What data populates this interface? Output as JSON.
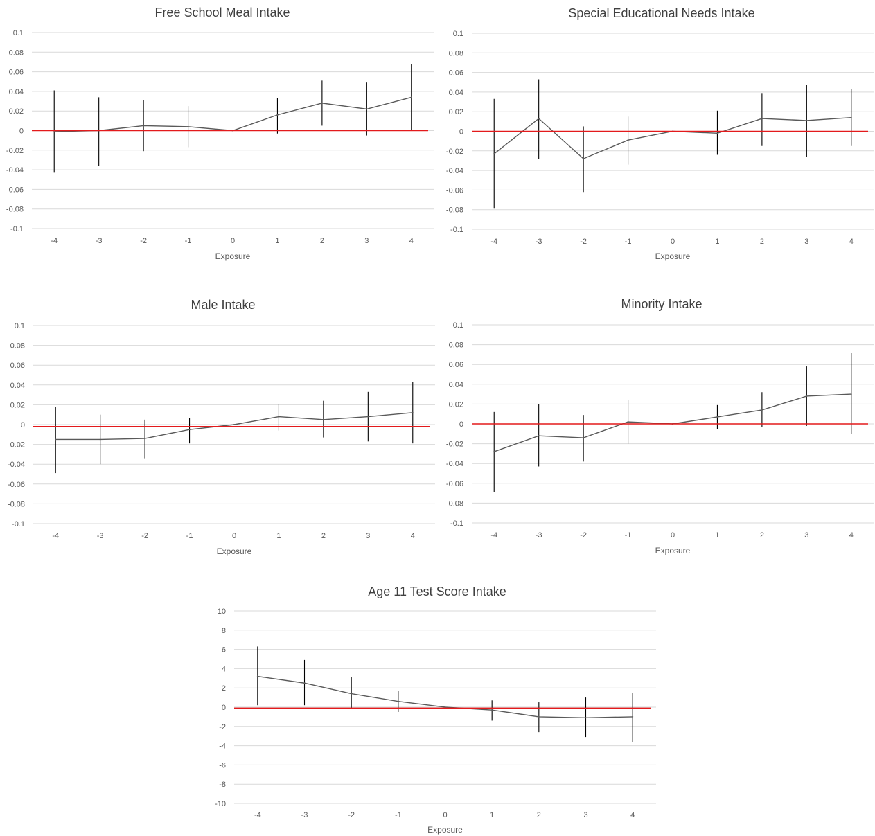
{
  "colors": {
    "series": "#595959",
    "error_bar": "#000000",
    "zero_line": "#e31a1c",
    "grid": "#d9d9d9"
  },
  "chart_data": [
    {
      "type": "line",
      "title": "Free School Meal Intake",
      "xlabel": "Exposure",
      "ylabel": "",
      "categories": [
        "-4",
        "-3",
        "-2",
        "-1",
        "0",
        "1",
        "2",
        "3",
        "4"
      ],
      "yticks": [
        "0.1",
        "0.08",
        "0.06",
        "0.04",
        "0.02",
        "0",
        "-0.02",
        "-0.04",
        "-0.06",
        "-0.08",
        "-0.1"
      ],
      "ylim": [
        -0.1,
        0.1
      ],
      "grid": true,
      "reference_line": 0,
      "values": [
        -0.001,
        0.0,
        0.005,
        0.004,
        0.0,
        0.016,
        0.028,
        0.022,
        0.034
      ],
      "ci_lower": [
        -0.043,
        -0.036,
        -0.021,
        -0.017,
        0.0,
        -0.003,
        0.005,
        -0.005,
        0.0
      ],
      "ci_upper": [
        0.041,
        0.034,
        0.031,
        0.025,
        0.0,
        0.033,
        0.051,
        0.049,
        0.068
      ]
    },
    {
      "type": "line",
      "title": "Special Educational Needs Intake",
      "xlabel": "Exposure",
      "ylabel": "",
      "categories": [
        "-4",
        "-3",
        "-2",
        "-1",
        "0",
        "1",
        "2",
        "3",
        "4"
      ],
      "yticks": [
        "0.1",
        "0.08",
        "0.06",
        "0.04",
        "0.02",
        "0",
        "-0.02",
        "-0.04",
        "-0.06",
        "-0.08",
        "-0.1"
      ],
      "ylim": [
        -0.1,
        0.1
      ],
      "grid": true,
      "reference_line": 0,
      "values": [
        -0.023,
        0.013,
        -0.028,
        -0.009,
        0.0,
        -0.002,
        0.013,
        0.011,
        0.014
      ],
      "ci_lower": [
        -0.079,
        -0.028,
        -0.062,
        -0.034,
        0.0,
        -0.024,
        -0.015,
        -0.026,
        -0.015
      ],
      "ci_upper": [
        0.033,
        0.053,
        0.005,
        0.015,
        0.0,
        0.021,
        0.039,
        0.047,
        0.043
      ]
    },
    {
      "type": "line",
      "title": "Male Intake",
      "xlabel": "Exposure",
      "ylabel": "",
      "categories": [
        "-4",
        "-3",
        "-2",
        "-1",
        "0",
        "1",
        "2",
        "3",
        "4"
      ],
      "yticks": [
        "0.1",
        "0.08",
        "0.06",
        "0.04",
        "0.02",
        "0",
        "-0.02",
        "-0.04",
        "-0.06",
        "-0.08",
        "-0.1"
      ],
      "ylim": [
        -0.1,
        0.1
      ],
      "grid": true,
      "reference_line": -0.002,
      "values": [
        -0.015,
        -0.015,
        -0.014,
        -0.005,
        0.0,
        0.008,
        0.005,
        0.008,
        0.012
      ],
      "ci_lower": [
        -0.049,
        -0.04,
        -0.034,
        -0.019,
        0.0,
        -0.006,
        -0.013,
        -0.017,
        -0.019
      ],
      "ci_upper": [
        0.018,
        0.01,
        0.005,
        0.007,
        0.0,
        0.021,
        0.024,
        0.033,
        0.043
      ]
    },
    {
      "type": "line",
      "title": "Minority Intake",
      "xlabel": "Exposure",
      "ylabel": "",
      "categories": [
        "-4",
        "-3",
        "-2",
        "-1",
        "0",
        "1",
        "2",
        "3",
        "4"
      ],
      "yticks": [
        "0.1",
        "0.08",
        "0.06",
        "0.04",
        "0.02",
        "0",
        "-0.02",
        "-0.04",
        "-0.06",
        "-0.08",
        "-0.1"
      ],
      "ylim": [
        -0.1,
        0.1
      ],
      "grid": true,
      "reference_line": 0,
      "values": [
        -0.028,
        -0.012,
        -0.014,
        0.002,
        0.0,
        0.007,
        0.014,
        0.028,
        0.03
      ],
      "ci_lower": [
        -0.069,
        -0.043,
        -0.038,
        -0.02,
        0.0,
        -0.005,
        -0.003,
        -0.002,
        -0.01
      ],
      "ci_upper": [
        0.012,
        0.02,
        0.009,
        0.024,
        0.0,
        0.019,
        0.032,
        0.058,
        0.072
      ]
    },
    {
      "type": "line",
      "title": "Age 11 Test Score Intake",
      "xlabel": "Exposure",
      "ylabel": "",
      "categories": [
        "-4",
        "-3",
        "-2",
        "-1",
        "0",
        "1",
        "2",
        "3",
        "4"
      ],
      "yticks": [
        "10",
        "8",
        "6",
        "4",
        "2",
        "0",
        "-2",
        "-4",
        "-6",
        "-8",
        "-10"
      ],
      "ylim": [
        -10,
        10
      ],
      "grid": true,
      "reference_line": -0.1,
      "values": [
        3.2,
        2.5,
        1.4,
        0.6,
        0.0,
        -0.3,
        -1.0,
        -1.1,
        -1.0
      ],
      "ci_lower": [
        0.2,
        0.2,
        -0.2,
        -0.5,
        0.0,
        -1.4,
        -2.6,
        -3.1,
        -3.6
      ],
      "ci_upper": [
        6.3,
        4.9,
        3.1,
        1.7,
        0.0,
        0.7,
        0.5,
        1.0,
        1.5
      ]
    }
  ]
}
